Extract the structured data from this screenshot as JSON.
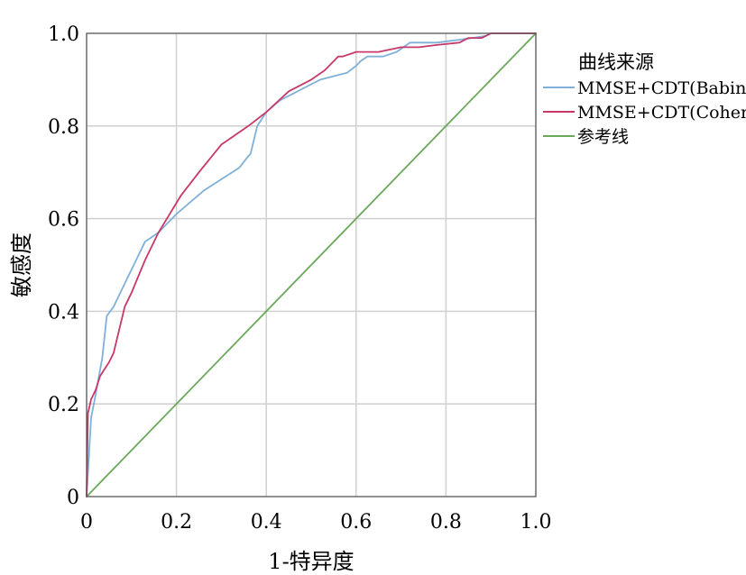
{
  "chart_data": {
    "type": "line",
    "xlabel": "1-特异度",
    "ylabel": "敏感度",
    "xlim": [
      0,
      1
    ],
    "ylim": [
      0,
      1
    ],
    "x_ticks": [
      "0",
      "0.2",
      "0.4",
      "0.6",
      "0.8",
      "1.0"
    ],
    "y_ticks": [
      "0",
      "0.2",
      "0.4",
      "0.6",
      "0.8",
      "1.0"
    ],
    "grid": true,
    "legend_title": "曲线来源",
    "legend_position": "right",
    "series": [
      {
        "name": "MMSE+CDT(Babins)",
        "color": "#7fb0da",
        "x": [
          0,
          0.003,
          0.01,
          0.02,
          0.035,
          0.045,
          0.06,
          0.09,
          0.11,
          0.13,
          0.16,
          0.2,
          0.26,
          0.3,
          0.34,
          0.36,
          0.365,
          0.38,
          0.4,
          0.43,
          0.46,
          0.5,
          0.52,
          0.56,
          0.58,
          0.6,
          0.61,
          0.625,
          0.66,
          0.69,
          0.72,
          0.78,
          0.82,
          0.86,
          0.89,
          0.9,
          1.0
        ],
        "y": [
          0,
          0.05,
          0.17,
          0.22,
          0.3,
          0.39,
          0.41,
          0.47,
          0.51,
          0.55,
          0.57,
          0.61,
          0.66,
          0.685,
          0.71,
          0.735,
          0.74,
          0.8,
          0.83,
          0.855,
          0.87,
          0.89,
          0.9,
          0.91,
          0.915,
          0.93,
          0.94,
          0.95,
          0.95,
          0.96,
          0.98,
          0.98,
          0.985,
          0.99,
          0.995,
          1.0,
          1.0
        ]
      },
      {
        "name": "MMSE+CDT(Cohen)",
        "color": "#c8386a",
        "x": [
          0,
          0.003,
          0.01,
          0.02,
          0.03,
          0.05,
          0.06,
          0.085,
          0.1,
          0.13,
          0.16,
          0.21,
          0.25,
          0.3,
          0.36,
          0.4,
          0.45,
          0.5,
          0.53,
          0.56,
          0.57,
          0.6,
          0.65,
          0.7,
          0.74,
          0.78,
          0.83,
          0.85,
          0.88,
          0.9,
          1.0
        ],
        "y": [
          0,
          0.18,
          0.21,
          0.23,
          0.26,
          0.29,
          0.31,
          0.41,
          0.44,
          0.51,
          0.57,
          0.65,
          0.7,
          0.76,
          0.8,
          0.83,
          0.875,
          0.9,
          0.92,
          0.95,
          0.95,
          0.96,
          0.96,
          0.97,
          0.97,
          0.975,
          0.98,
          0.99,
          0.99,
          1.0,
          1.0
        ]
      },
      {
        "name": "参考线",
        "color": "#6aa85a",
        "x": [
          0,
          1
        ],
        "y": [
          0,
          1
        ]
      }
    ]
  }
}
